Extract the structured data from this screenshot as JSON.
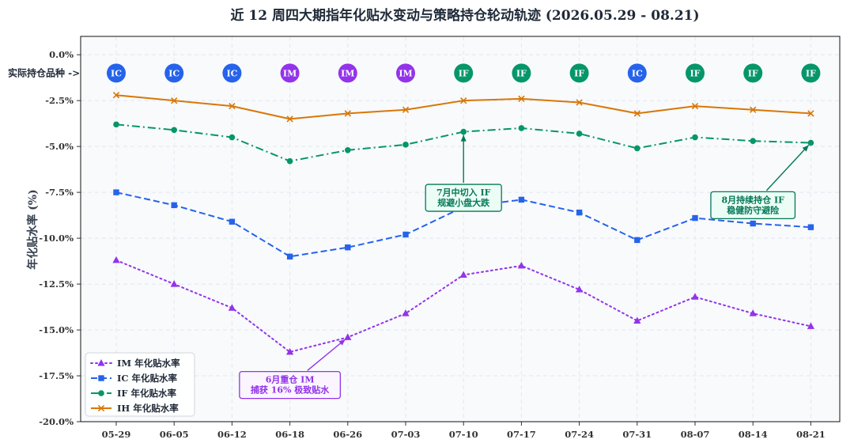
{
  "chart_data": {
    "type": "line",
    "title": "近 12 周四大期指年化贴水变动与策略持仓轮动轨迹 (2026.05.29 - 08.21)",
    "xlabel": "",
    "ylabel": "年化贴水率 (%)",
    "categories": [
      "05-29",
      "06-05",
      "06-12",
      "06-18",
      "06-26",
      "07-03",
      "07-10",
      "07-17",
      "07-24",
      "07-31",
      "08-07",
      "08-14",
      "08-21"
    ],
    "ylim": [
      -20.0,
      1.0
    ],
    "yticks": [
      0.0,
      -2.5,
      -5.0,
      -7.5,
      -10.0,
      -12.5,
      -15.0,
      -17.5,
      -20.0
    ],
    "ytick_labels": [
      "0.0%",
      "-2.5%",
      "-5.0%",
      "-7.5%",
      "-10.0%",
      "-12.5%",
      "-15.0%",
      "-17.5%",
      "-20.0%"
    ],
    "grid": true,
    "legend_position": "lower-left",
    "series": [
      {
        "name": "IM 年化贴水率",
        "color": "#9333ea",
        "marker": "triangle",
        "dash": "dotted",
        "values": [
          -11.2,
          -12.5,
          -13.8,
          -16.2,
          -15.4,
          -14.1,
          -12.0,
          -11.5,
          -12.8,
          -14.5,
          -13.2,
          -14.1,
          -14.8
        ]
      },
      {
        "name": "IC 年化贴水率",
        "color": "#2563eb",
        "marker": "square",
        "dash": "dashed",
        "values": [
          -7.5,
          -8.2,
          -9.1,
          -11.0,
          -10.5,
          -9.8,
          -8.3,
          -7.9,
          -8.6,
          -10.1,
          -8.9,
          -9.2,
          -9.4
        ]
      },
      {
        "name": "IF 年化贴水率",
        "color": "#059669",
        "marker": "circle",
        "dash": "dashdot",
        "values": [
          -3.8,
          -4.1,
          -4.5,
          -5.8,
          -5.2,
          -4.9,
          -4.2,
          -4.0,
          -4.3,
          -5.1,
          -4.5,
          -4.7,
          -4.8
        ]
      },
      {
        "name": "IH 年化贴水率",
        "color": "#d97706",
        "marker": "x",
        "dash": "solid",
        "values": [
          -2.2,
          -2.5,
          -2.8,
          -3.5,
          -3.2,
          -3.0,
          -2.5,
          -2.4,
          -2.6,
          -3.2,
          -2.8,
          -3.0,
          -3.2
        ]
      }
    ],
    "holdings": {
      "label": "实际持仓品种 ->",
      "y": -1.0,
      "items": [
        "IC",
        "IC",
        "IC",
        "IM",
        "IM",
        "IM",
        "IF",
        "IF",
        "IF",
        "IC",
        "IF",
        "IF",
        "IF"
      ],
      "colors": {
        "IC": "#2563eb",
        "IM": "#9333ea",
        "IF": "#059669"
      }
    },
    "annotations": [
      {
        "lines": [
          "6月重仓 IM",
          "捕获 16% 极致贴水"
        ],
        "color": "#9333ea",
        "bg": "#faf5ff",
        "target_index": 4,
        "target_value": -15.4,
        "box_index": 3.0,
        "box_value": -18.0
      },
      {
        "lines": [
          "7月中切入 IF",
          "规避小盘大跌"
        ],
        "color": "#047857",
        "bg": "#ecfdf5",
        "target_index": 6,
        "target_value": -4.2,
        "box_index": 6.0,
        "box_value": -7.8
      },
      {
        "lines": [
          "8月持续持仓 IF",
          "稳健防守避险"
        ],
        "color": "#047857",
        "bg": "#ecfdf5",
        "target_index": 12,
        "target_value": -4.8,
        "box_index": 11.0,
        "box_value": -8.2
      }
    ]
  }
}
